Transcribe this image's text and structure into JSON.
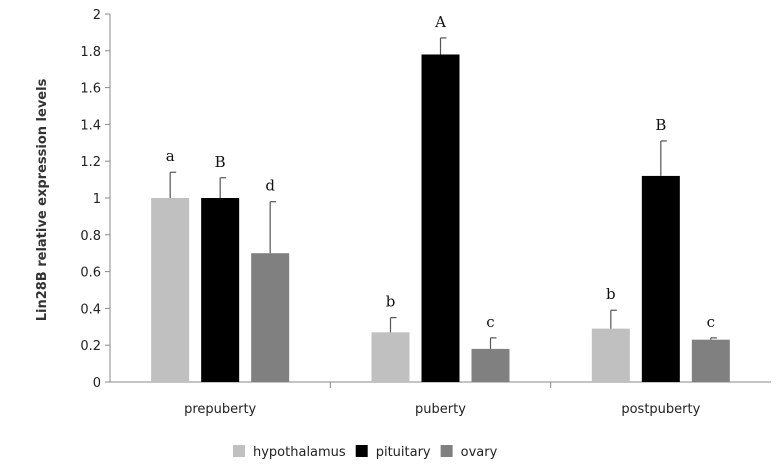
{
  "chart_data": {
    "type": "bar",
    "title": "",
    "xlabel": "",
    "ylabel": "Lin28B relative expression levels",
    "ylim": [
      0,
      2
    ],
    "yticks": [
      "0",
      "0.2",
      "0.4",
      "0.6",
      "0.8",
      "1",
      "1.2",
      "1.4",
      "1.6",
      "1.8",
      "2"
    ],
    "categories": [
      "prepuberty",
      "puberty",
      "postpuberty"
    ],
    "grid": false,
    "legend_position": "bottom",
    "series": [
      {
        "name": "hypothalamus",
        "color": "#c0c0c0",
        "values": [
          1.0,
          0.27,
          0.29
        ],
        "errors": [
          0.14,
          0.08,
          0.1
        ],
        "labels": [
          "a",
          "b",
          "b"
        ]
      },
      {
        "name": "pituitary",
        "color": "#000000",
        "values": [
          1.0,
          1.78,
          1.12
        ],
        "errors": [
          0.11,
          0.09,
          0.19
        ],
        "labels": [
          "B",
          "A",
          "B"
        ]
      },
      {
        "name": "ovary",
        "color": "#808080",
        "values": [
          0.7,
          0.18,
          0.23
        ],
        "errors": [
          0.28,
          0.06,
          0.01
        ],
        "labels": [
          "d",
          "c",
          "c"
        ]
      }
    ]
  }
}
